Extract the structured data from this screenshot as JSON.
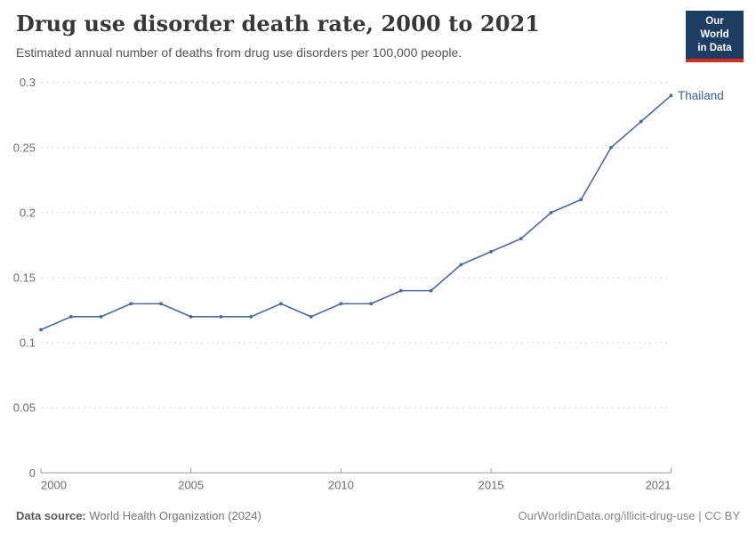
{
  "header": {
    "title": "Drug use disorder death rate, 2000 to 2021",
    "subtitle": "Estimated annual number of deaths from drug use disorders per 100,000 people."
  },
  "logo": {
    "line1": "Our World",
    "line2": "in Data"
  },
  "colors": {
    "line": "#4C6A9C",
    "entity_label": "#3D639A",
    "logo_bg": "#1d3d63",
    "logo_red": "#d12d20"
  },
  "chart_data": {
    "type": "line",
    "title": "Drug use disorder death rate, 2000 to 2021",
    "subtitle": "Estimated annual number of deaths from drug use disorders per 100,000 people.",
    "xlabel": "",
    "ylabel": "",
    "x": [
      2000,
      2001,
      2002,
      2003,
      2004,
      2005,
      2006,
      2007,
      2008,
      2009,
      2010,
      2011,
      2012,
      2013,
      2014,
      2015,
      2016,
      2017,
      2018,
      2019,
      2020,
      2021
    ],
    "series": [
      {
        "name": "Thailand",
        "values": [
          0.11,
          0.12,
          0.12,
          0.13,
          0.13,
          0.12,
          0.12,
          0.12,
          0.13,
          0.12,
          0.13,
          0.13,
          0.14,
          0.14,
          0.16,
          0.17,
          0.18,
          0.2,
          0.21,
          0.25,
          0.27,
          0.29
        ]
      }
    ],
    "ylim": [
      0,
      0.3
    ],
    "yticks": [
      0,
      0.05,
      0.1,
      0.15,
      0.2,
      0.25,
      0.3
    ],
    "ytick_labels": [
      "0",
      "0.05",
      "0.1",
      "0.15",
      "0.2",
      "0.25",
      "0.3"
    ],
    "xticks": [
      2000,
      2005,
      2010,
      2015,
      2021
    ],
    "grid": true,
    "legend_position": "end-of-line label"
  },
  "footer": {
    "source_label": "Data source:",
    "source_value": "World Health Organization (2024)",
    "credit": "OurWorldinData.org/illicit-drug-use | CC BY"
  }
}
